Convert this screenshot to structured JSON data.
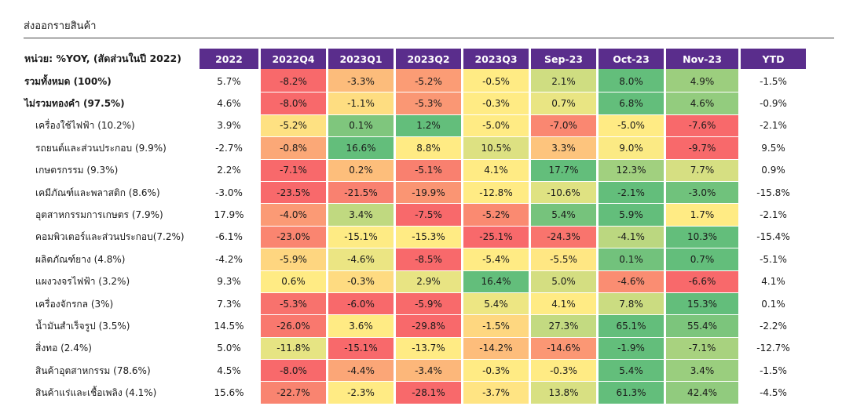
{
  "title": "ส่งออกรายสินค้า",
  "chart_data": {
    "type": "table",
    "unit_header": "หน่วย: %YOY, (สัดส่วนในปี 2022)",
    "columns": [
      "2022",
      "2022Q4",
      "2023Q1",
      "2023Q2",
      "2023Q3",
      "Sep-23",
      "Oct-23",
      "Nov-23",
      "YTD"
    ],
    "heat_columns": [
      1,
      2,
      3,
      4,
      5,
      6,
      7
    ],
    "rows": [
      {
        "label": "รวมทั้งหมด (100%)",
        "bold": true,
        "values": [
          "5.7%",
          "-8.2%",
          "-3.3%",
          "-5.2%",
          "-0.5%",
          "2.1%",
          "8.0%",
          "4.9%",
          "-1.5%"
        ]
      },
      {
        "label": "ไม่รวมทองคำ (97.5%)",
        "bold": true,
        "values": [
          "4.6%",
          "-8.0%",
          "-1.1%",
          "-5.3%",
          "-0.3%",
          "0.7%",
          "6.8%",
          "4.6%",
          "-0.9%"
        ]
      },
      {
        "label": "เครื่องใช้ไฟฟ้า (10.2%)",
        "bold": false,
        "values": [
          "3.9%",
          "-5.2%",
          "0.1%",
          "1.2%",
          "-5.0%",
          "-7.0%",
          "-5.0%",
          "-7.6%",
          "-2.1%"
        ]
      },
      {
        "label": "รถยนต์และส่วนประกอบ (9.9%)",
        "bold": false,
        "values": [
          "-2.7%",
          "-0.8%",
          "16.6%",
          "8.8%",
          "10.5%",
          "3.3%",
          "9.0%",
          "-9.7%",
          "9.5%"
        ]
      },
      {
        "label": "เกษตรกรรม (9.3%)",
        "bold": false,
        "values": [
          "2.2%",
          "-7.1%",
          "0.2%",
          "-5.1%",
          "4.1%",
          "17.7%",
          "12.3%",
          "7.7%",
          "0.9%"
        ]
      },
      {
        "label": "เคมีภัณฑ์และพลาสติก (8.6%)",
        "bold": false,
        "values": [
          "-3.0%",
          "-23.5%",
          "-21.5%",
          "-19.9%",
          "-12.8%",
          "-10.6%",
          "-2.1%",
          "-3.0%",
          "-15.8%"
        ]
      },
      {
        "label": "อุตสาหกรรมการเกษตร (7.9%)",
        "bold": false,
        "values": [
          "17.9%",
          "-4.0%",
          "3.4%",
          "-7.5%",
          "-5.2%",
          "5.4%",
          "5.9%",
          "1.7%",
          "-2.1%"
        ]
      },
      {
        "label": "คอมพิวเตอร์และส่วนประกอบ(7.2%)",
        "bold": false,
        "values": [
          "-6.1%",
          "-23.0%",
          "-15.1%",
          "-15.3%",
          "-25.1%",
          "-24.3%",
          "-4.1%",
          "10.3%",
          "-15.4%"
        ]
      },
      {
        "label": "ผลิตภัณฑ์ยาง (4.8%)",
        "bold": false,
        "values": [
          "-4.2%",
          "-5.9%",
          "-4.6%",
          "-8.5%",
          "-5.4%",
          "-5.5%",
          "0.1%",
          "0.7%",
          "-5.1%"
        ]
      },
      {
        "label": "แผงวงจรไฟฟ้า (3.2%)",
        "bold": false,
        "values": [
          "9.3%",
          "0.6%",
          "-0.3%",
          "2.9%",
          "16.4%",
          "5.0%",
          "-4.6%",
          "-6.6%",
          "4.1%"
        ]
      },
      {
        "label": "เครื่องจักรกล (3%)",
        "bold": false,
        "values": [
          "7.3%",
          "-5.3%",
          "-6.0%",
          "-5.9%",
          "5.4%",
          "4.1%",
          "7.8%",
          "15.3%",
          "0.1%"
        ]
      },
      {
        "label": "น้ำมันสำเร็จรูป (3.5%)",
        "bold": false,
        "values": [
          "14.5%",
          "-26.0%",
          "3.6%",
          "-29.8%",
          "-1.5%",
          "27.3%",
          "65.1%",
          "55.4%",
          "-2.2%"
        ]
      },
      {
        "label": "สิ่งทอ (2.4%)",
        "bold": false,
        "values": [
          "5.0%",
          "-11.8%",
          "-15.1%",
          "-13.7%",
          "-14.2%",
          "-14.6%",
          "-1.9%",
          "-7.1%",
          "-12.7%"
        ]
      },
      {
        "label": "สินค้าอุตสาหกรรม (78.6%)",
        "bold": false,
        "values": [
          "4.5%",
          "-8.0%",
          "-4.4%",
          "-3.4%",
          "-0.3%",
          "-0.3%",
          "5.4%",
          "3.4%",
          "-1.5%"
        ]
      },
      {
        "label": "สินค้าแร่และเชื้อเพลิง (4.1%)",
        "bold": false,
        "values": [
          "15.6%",
          "-22.7%",
          "-2.3%",
          "-28.1%",
          "-3.7%",
          "13.8%",
          "61.3%",
          "42.4%",
          "-4.5%"
        ]
      }
    ],
    "colors": {
      "header_bg": "#5a2d8c",
      "header_text": "#ffffff",
      "heat_negative": "#f8696b",
      "heat_neutral": "#ffeb84",
      "heat_positive": "#63be7b"
    }
  }
}
